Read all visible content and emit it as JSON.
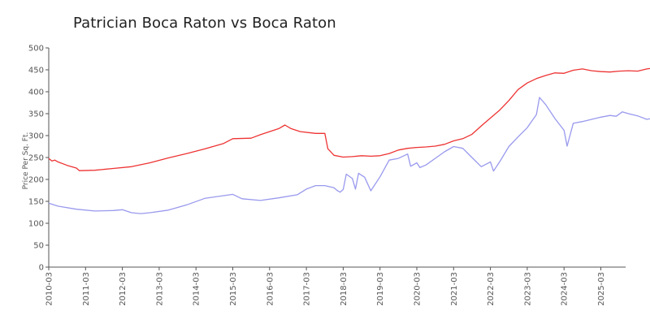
{
  "chart_data": {
    "type": "line",
    "title": "Patrician Boca Raton vs Boca Raton",
    "xlabel": "",
    "ylabel": "Price Per Sq. Ft.",
    "ylim": [
      0,
      500
    ],
    "yticks": [
      0,
      50,
      100,
      150,
      200,
      250,
      300,
      350,
      400,
      450,
      500
    ],
    "xticks": [
      "2010-03",
      "2011-03",
      "2012-03",
      "2013-03",
      "2014-03",
      "2015-03",
      "2016-03",
      "2017-03",
      "2018-03",
      "2019-03",
      "2020-03",
      "2021-03",
      "2022-03",
      "2023-03",
      "2024-03",
      "2025-03"
    ],
    "grid": false,
    "legend": "none",
    "series": [
      {
        "color": "#ee3333",
        "points": [
          [
            "2010-03",
            248
          ],
          [
            "2010-04",
            242
          ],
          [
            "2010-05",
            244
          ],
          [
            "2010-06",
            240
          ],
          [
            "2010-09",
            232
          ],
          [
            "2010-12",
            226
          ],
          [
            "2011-01",
            220
          ],
          [
            "2011-06",
            221
          ],
          [
            "2011-12",
            225
          ],
          [
            "2012-06",
            229
          ],
          [
            "2012-12",
            238
          ],
          [
            "2013-06",
            249
          ],
          [
            "2013-12",
            259
          ],
          [
            "2014-06",
            270
          ],
          [
            "2014-12",
            282
          ],
          [
            "2015-03",
            293
          ],
          [
            "2015-09",
            294
          ],
          [
            "2015-12",
            302
          ],
          [
            "2016-03",
            309
          ],
          [
            "2016-06",
            316
          ],
          [
            "2016-08",
            324
          ],
          [
            "2016-10",
            316
          ],
          [
            "2017-01",
            309
          ],
          [
            "2017-06",
            305
          ],
          [
            "2017-09",
            305
          ],
          [
            "2017-10",
            270
          ],
          [
            "2017-12",
            255
          ],
          [
            "2018-03",
            251
          ],
          [
            "2018-06",
            252
          ],
          [
            "2018-09",
            254
          ],
          [
            "2018-12",
            253
          ],
          [
            "2019-03",
            254
          ],
          [
            "2019-06",
            259
          ],
          [
            "2019-09",
            267
          ],
          [
            "2019-12",
            271
          ],
          [
            "2020-03",
            273
          ],
          [
            "2020-06",
            274
          ],
          [
            "2020-09",
            276
          ],
          [
            "2020-12",
            280
          ],
          [
            "2021-03",
            288
          ],
          [
            "2021-06",
            293
          ],
          [
            "2021-09",
            303
          ],
          [
            "2021-12",
            322
          ],
          [
            "2022-03",
            340
          ],
          [
            "2022-06",
            358
          ],
          [
            "2022-09",
            380
          ],
          [
            "2022-12",
            405
          ],
          [
            "2023-03",
            420
          ],
          [
            "2023-06",
            430
          ],
          [
            "2023-09",
            437
          ],
          [
            "2023-12",
            443
          ],
          [
            "2024-03",
            442
          ],
          [
            "2024-06",
            449
          ],
          [
            "2024-09",
            452
          ],
          [
            "2024-12",
            448
          ],
          [
            "2025-03",
            446
          ],
          [
            "2025-06",
            445
          ],
          [
            "2025-09",
            447
          ],
          [
            "2025-12",
            448
          ],
          [
            "2026-03",
            447
          ],
          [
            "2026-06",
            452
          ],
          [
            "2026-09",
            455
          ]
        ]
      },
      {
        "color": "#9999ee",
        "points": [
          [
            "2010-03",
            146
          ],
          [
            "2010-06",
            139
          ],
          [
            "2010-12",
            132
          ],
          [
            "2011-06",
            128
          ],
          [
            "2011-12",
            129
          ],
          [
            "2012-03",
            131
          ],
          [
            "2012-06",
            124
          ],
          [
            "2012-09",
            122
          ],
          [
            "2012-12",
            124
          ],
          [
            "2013-06",
            130
          ],
          [
            "2013-12",
            142
          ],
          [
            "2014-06",
            157
          ],
          [
            "2014-12",
            163
          ],
          [
            "2015-03",
            166
          ],
          [
            "2015-06",
            156
          ],
          [
            "2015-12",
            152
          ],
          [
            "2016-06",
            158
          ],
          [
            "2016-12",
            165
          ],
          [
            "2017-03",
            178
          ],
          [
            "2017-06",
            186
          ],
          [
            "2017-09",
            186
          ],
          [
            "2017-12",
            181
          ],
          [
            "2018-01",
            175
          ],
          [
            "2018-02",
            171
          ],
          [
            "2018-03",
            177
          ],
          [
            "2018-04",
            212
          ],
          [
            "2018-06",
            202
          ],
          [
            "2018-07",
            178
          ],
          [
            "2018-08",
            214
          ],
          [
            "2018-10",
            205
          ],
          [
            "2018-12",
            174
          ],
          [
            "2019-03",
            206
          ],
          [
            "2019-06",
            244
          ],
          [
            "2019-09",
            248
          ],
          [
            "2019-12",
            258
          ],
          [
            "2020-01",
            230
          ],
          [
            "2020-03",
            238
          ],
          [
            "2020-04",
            227
          ],
          [
            "2020-06",
            233
          ],
          [
            "2020-09",
            248
          ],
          [
            "2020-12",
            263
          ],
          [
            "2021-03",
            275
          ],
          [
            "2021-06",
            271
          ],
          [
            "2021-09",
            250
          ],
          [
            "2021-12",
            229
          ],
          [
            "2022-03",
            240
          ],
          [
            "2022-04",
            219
          ],
          [
            "2022-06",
            240
          ],
          [
            "2022-09",
            275
          ],
          [
            "2022-12",
            297
          ],
          [
            "2023-03",
            318
          ],
          [
            "2023-06",
            348
          ],
          [
            "2023-07",
            387
          ],
          [
            "2023-09",
            371
          ],
          [
            "2023-12",
            339
          ],
          [
            "2024-03",
            312
          ],
          [
            "2024-04",
            276
          ],
          [
            "2024-06",
            328
          ],
          [
            "2024-09",
            332
          ],
          [
            "2024-12",
            337
          ],
          [
            "2025-03",
            342
          ],
          [
            "2025-06",
            346
          ],
          [
            "2025-08",
            344
          ],
          [
            "2025-10",
            354
          ],
          [
            "2025-12",
            350
          ],
          [
            "2026-03",
            345
          ],
          [
            "2026-06",
            337
          ],
          [
            "2026-09",
            341
          ],
          [
            "2026-12",
            344
          ]
        ]
      }
    ]
  }
}
